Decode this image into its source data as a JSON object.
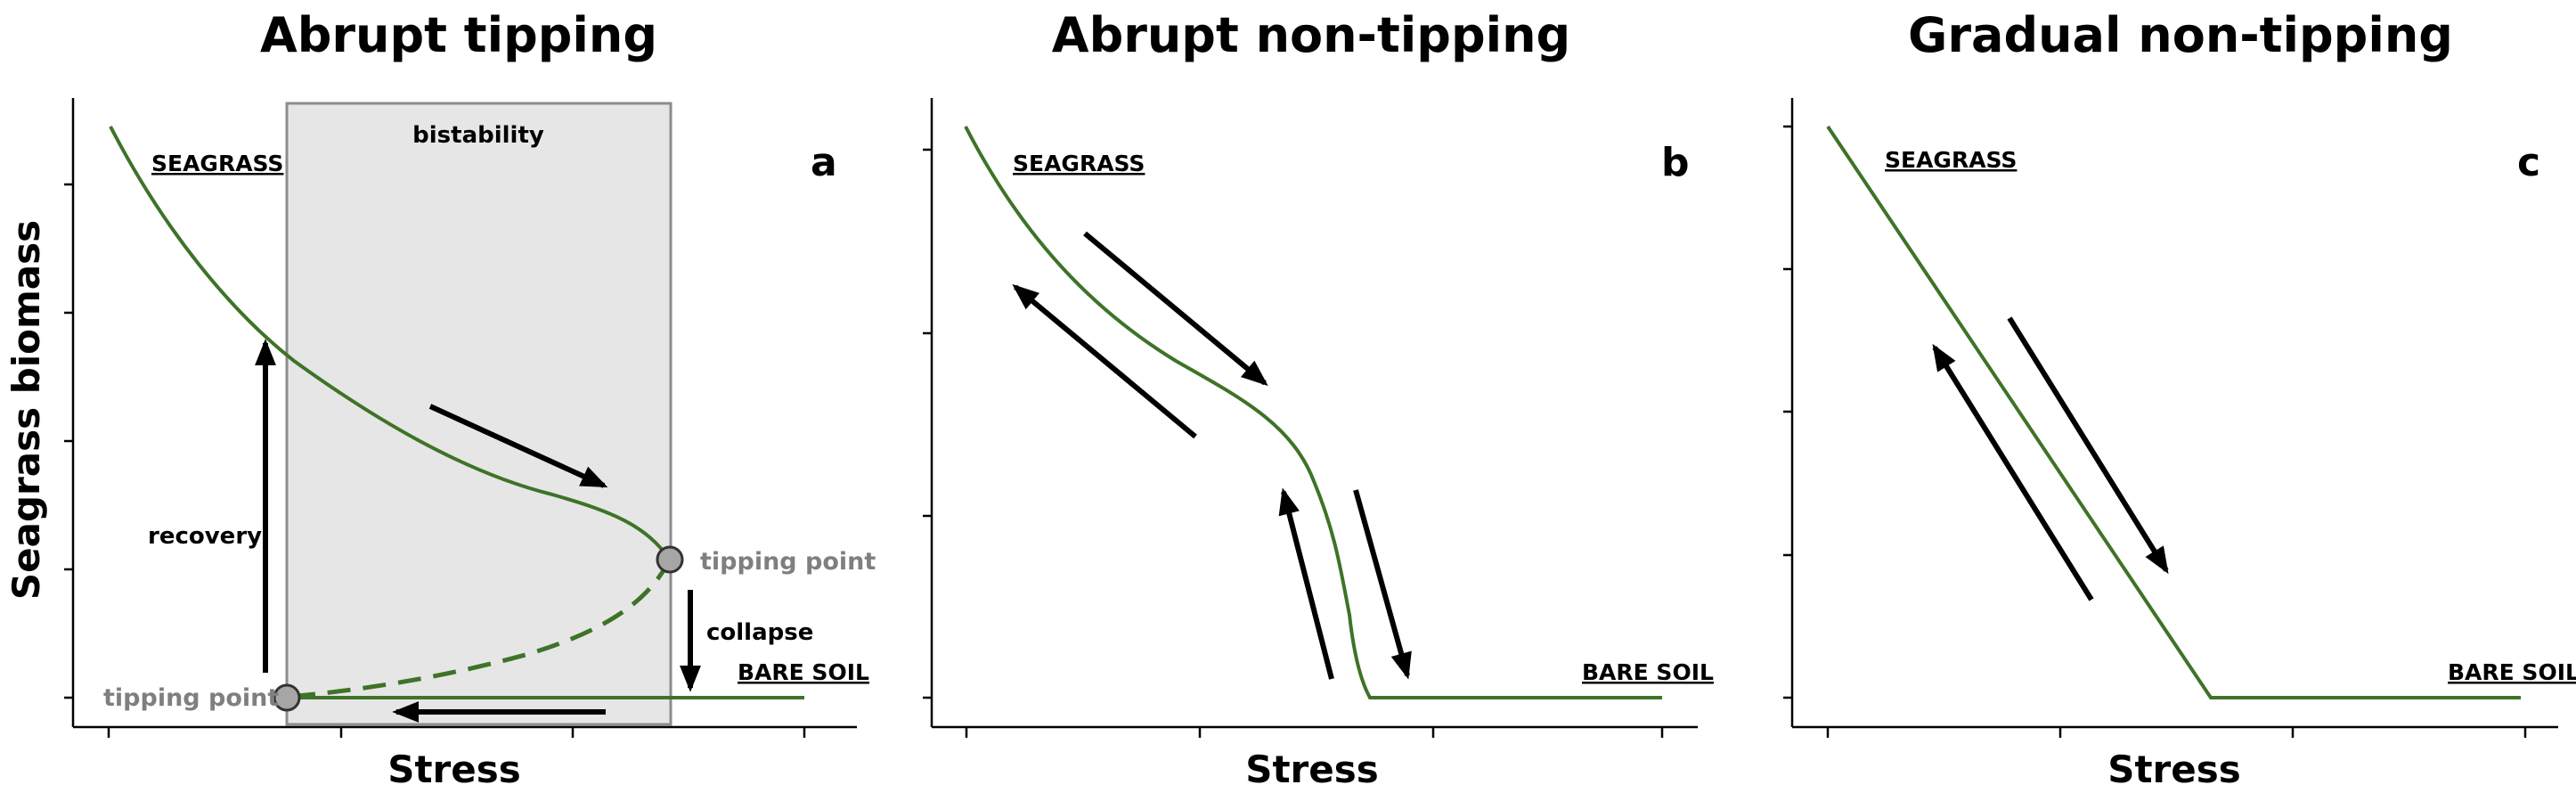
{
  "panels": [
    {
      "title": "Abrupt tipping",
      "letter": "a",
      "xlabel": "Stress",
      "ylabel": "Seagrass biomass",
      "seagrass_label": "SEAGRASS",
      "bare_soil_label": "BARE SOIL",
      "bistability_label": "bistability",
      "recovery_label": "recovery",
      "collapse_label": "collapse",
      "tipping_upper_label": "tipping point",
      "tipping_lower_label": "tipping point"
    },
    {
      "title": "Abrupt non-tipping",
      "letter": "b",
      "xlabel": "Stress",
      "seagrass_label": "SEAGRASS",
      "bare_soil_label": "BARE SOIL"
    },
    {
      "title": "Gradual non-tipping",
      "letter": "c",
      "xlabel": "Stress",
      "seagrass_label": "SEAGRASS",
      "bare_soil_label": "BARE SOIL"
    }
  ],
  "colors": {
    "curve": "#3e7328",
    "bistability_fill": "#e6e6e6",
    "bistability_border": "#8c8c8c",
    "tipping_point": "#7f7f7f",
    "arrows": "#000000"
  }
}
